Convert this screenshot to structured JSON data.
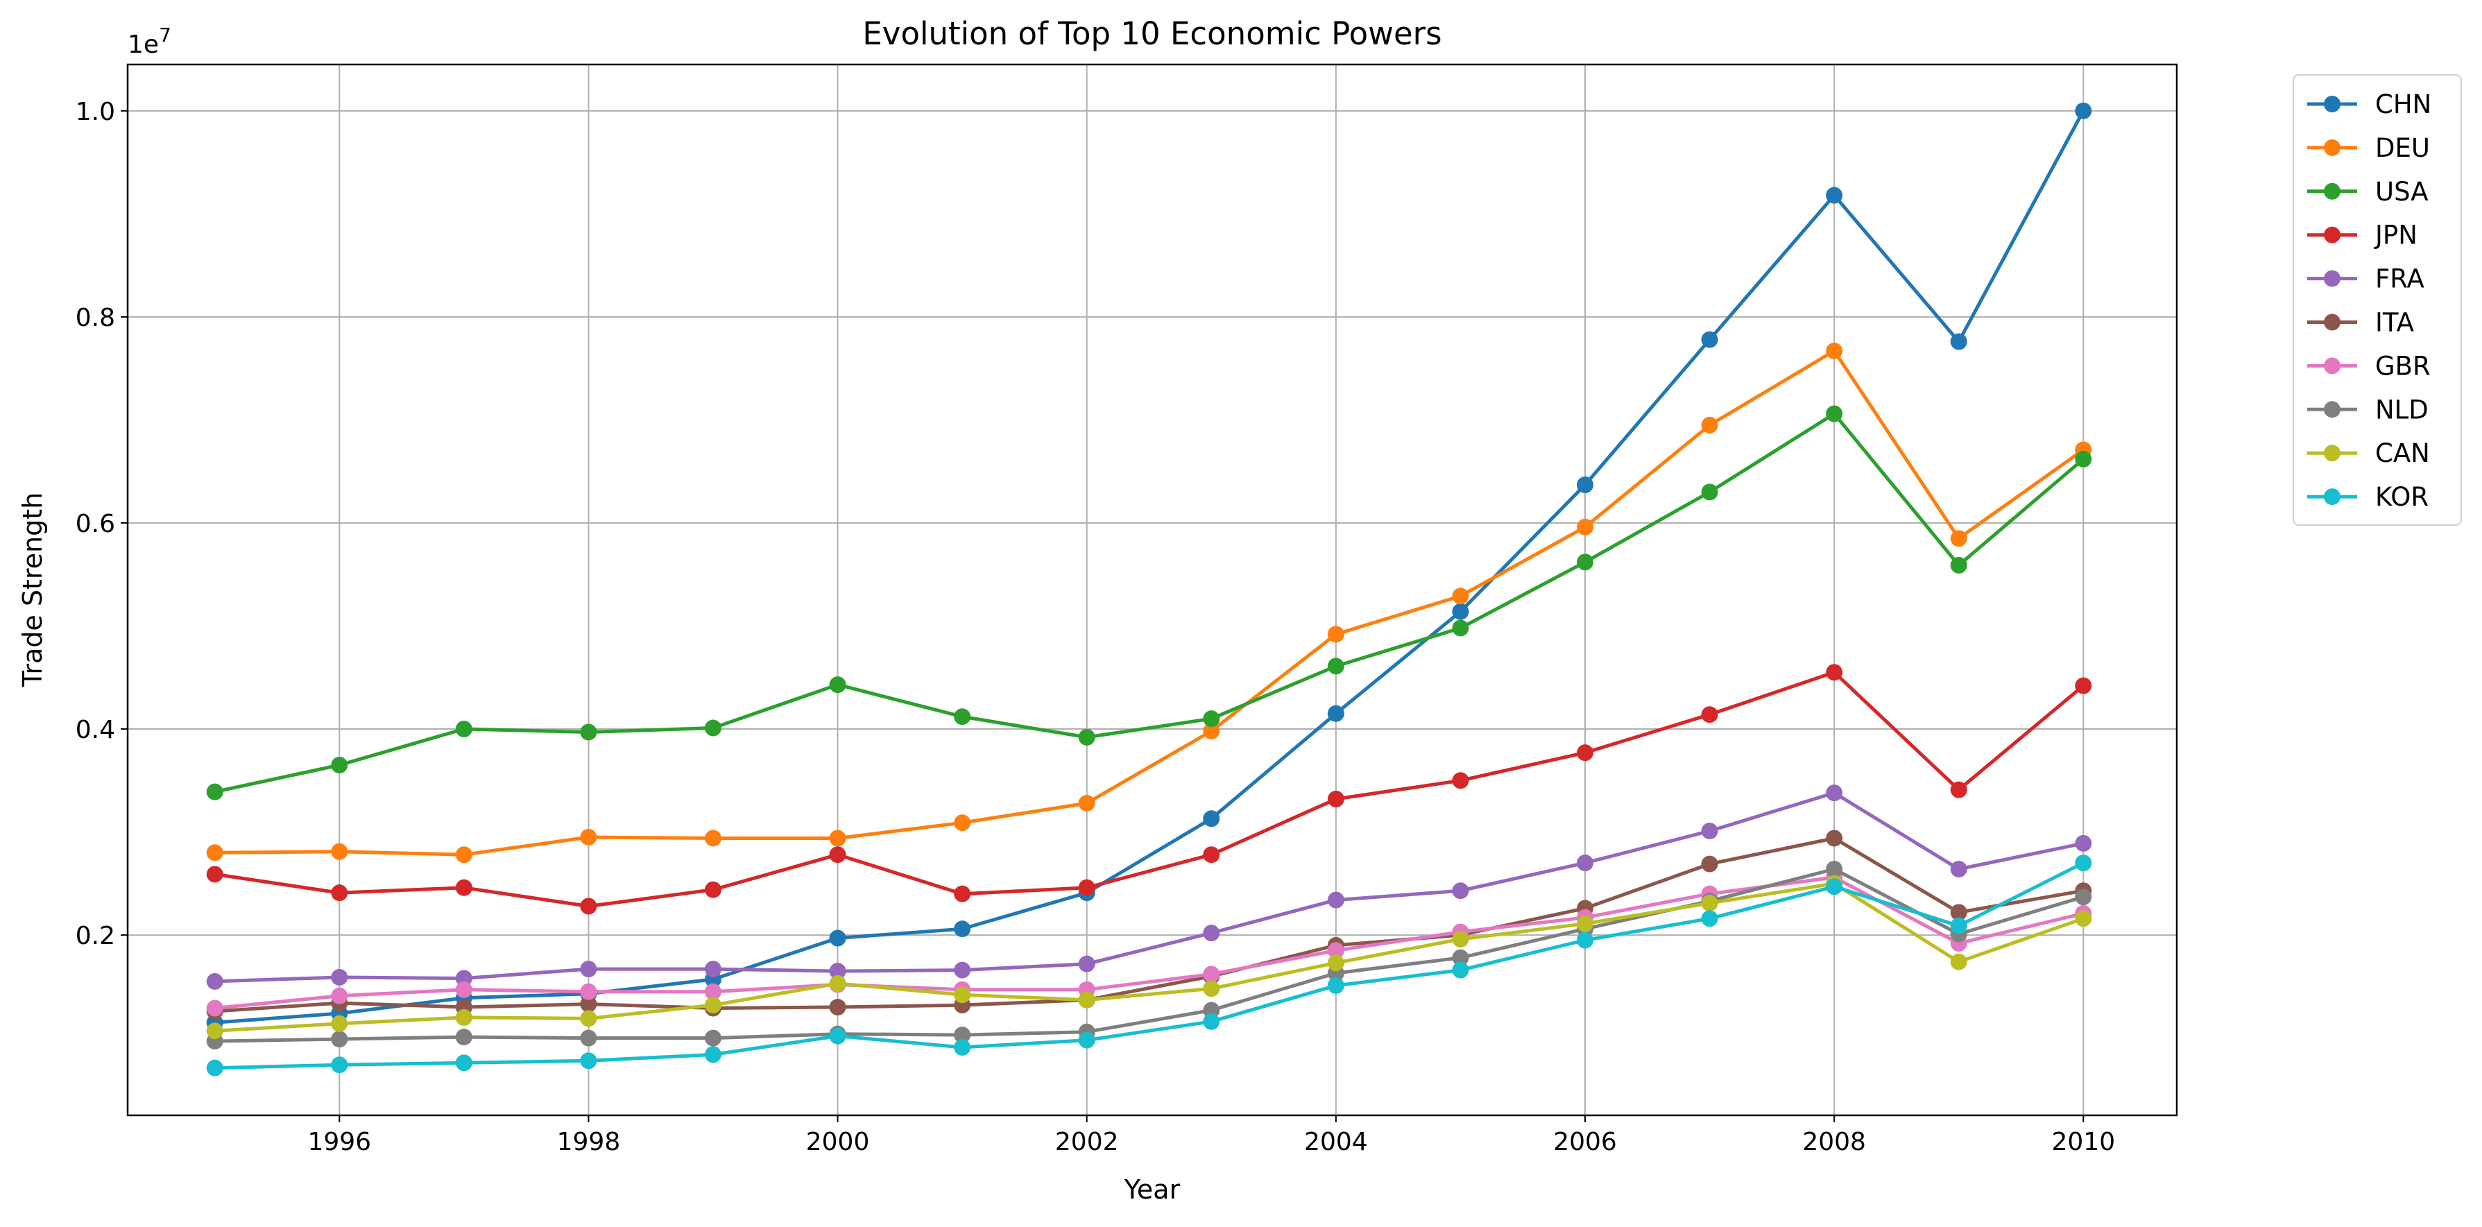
{
  "chart_data": {
    "type": "line",
    "title": "Evolution of Top 10 Economic Powers",
    "xlabel": "Year",
    "ylabel": "Trade Strength",
    "y_offset_text": "1e7",
    "xlim": [
      1994.3,
      2010.75
    ],
    "ylim": [
      250000,
      10450000
    ],
    "x_ticks": [
      1996,
      1998,
      2000,
      2002,
      2004,
      2006,
      2008,
      2010
    ],
    "y_ticks": [
      2000000,
      4000000,
      6000000,
      8000000,
      10000000
    ],
    "y_tick_labels": [
      "0.2",
      "0.4",
      "0.6",
      "0.8",
      "1.0"
    ],
    "grid": true,
    "legend_position": "outside-top-right",
    "x": [
      1995,
      1996,
      1997,
      1998,
      1999,
      2000,
      2001,
      2002,
      2003,
      2004,
      2005,
      2006,
      2007,
      2008,
      2009,
      2010
    ],
    "series": [
      {
        "name": "CHN",
        "color": "#1f77b4",
        "values": [
          1150000,
          1240000,
          1390000,
          1430000,
          1570000,
          1970000,
          2060000,
          2410000,
          3130000,
          4150000,
          5140000,
          6370000,
          7780000,
          9180000,
          7760000,
          10000000
        ]
      },
      {
        "name": "DEU",
        "color": "#ff7f0e",
        "values": [
          2800000,
          2810000,
          2780000,
          2950000,
          2940000,
          2940000,
          3090000,
          3280000,
          3980000,
          4920000,
          5290000,
          5960000,
          6950000,
          7670000,
          5850000,
          6710000
        ]
      },
      {
        "name": "USA",
        "color": "#2ca02c",
        "values": [
          3390000,
          3650000,
          4000000,
          3970000,
          4010000,
          4430000,
          4120000,
          3920000,
          4100000,
          4610000,
          4980000,
          5620000,
          6300000,
          7060000,
          5590000,
          6620000
        ]
      },
      {
        "name": "JPN",
        "color": "#d62728",
        "values": [
          2590000,
          2410000,
          2460000,
          2280000,
          2440000,
          2780000,
          2400000,
          2460000,
          2780000,
          3320000,
          3500000,
          3770000,
          4140000,
          4550000,
          3410000,
          4420000
        ]
      },
      {
        "name": "FRA",
        "color": "#9467bd",
        "values": [
          1550000,
          1590000,
          1580000,
          1670000,
          1670000,
          1650000,
          1660000,
          1720000,
          2020000,
          2340000,
          2430000,
          2700000,
          3010000,
          3380000,
          2640000,
          2890000
        ]
      },
      {
        "name": "ITA",
        "color": "#8c564b",
        "values": [
          1260000,
          1340000,
          1300000,
          1330000,
          1290000,
          1300000,
          1320000,
          1370000,
          1600000,
          1900000,
          2000000,
          2260000,
          2690000,
          2940000,
          2220000,
          2430000
        ]
      },
      {
        "name": "GBR",
        "color": "#e377c2",
        "values": [
          1290000,
          1410000,
          1470000,
          1450000,
          1450000,
          1520000,
          1470000,
          1470000,
          1620000,
          1850000,
          2030000,
          2170000,
          2400000,
          2560000,
          1920000,
          2210000
        ]
      },
      {
        "name": "NLD",
        "color": "#7f7f7f",
        "values": [
          970000,
          990000,
          1010000,
          1000000,
          1000000,
          1040000,
          1030000,
          1060000,
          1270000,
          1630000,
          1780000,
          2060000,
          2330000,
          2640000,
          2010000,
          2370000
        ]
      },
      {
        "name": "CAN",
        "color": "#bcbd22",
        "values": [
          1070000,
          1140000,
          1200000,
          1190000,
          1320000,
          1530000,
          1420000,
          1370000,
          1480000,
          1730000,
          1960000,
          2110000,
          2310000,
          2500000,
          1740000,
          2160000
        ]
      },
      {
        "name": "KOR",
        "color": "#17becf",
        "values": [
          710000,
          740000,
          760000,
          780000,
          840000,
          1020000,
          910000,
          980000,
          1160000,
          1510000,
          1660000,
          1950000,
          2160000,
          2470000,
          2090000,
          2700000
        ]
      }
    ]
  }
}
